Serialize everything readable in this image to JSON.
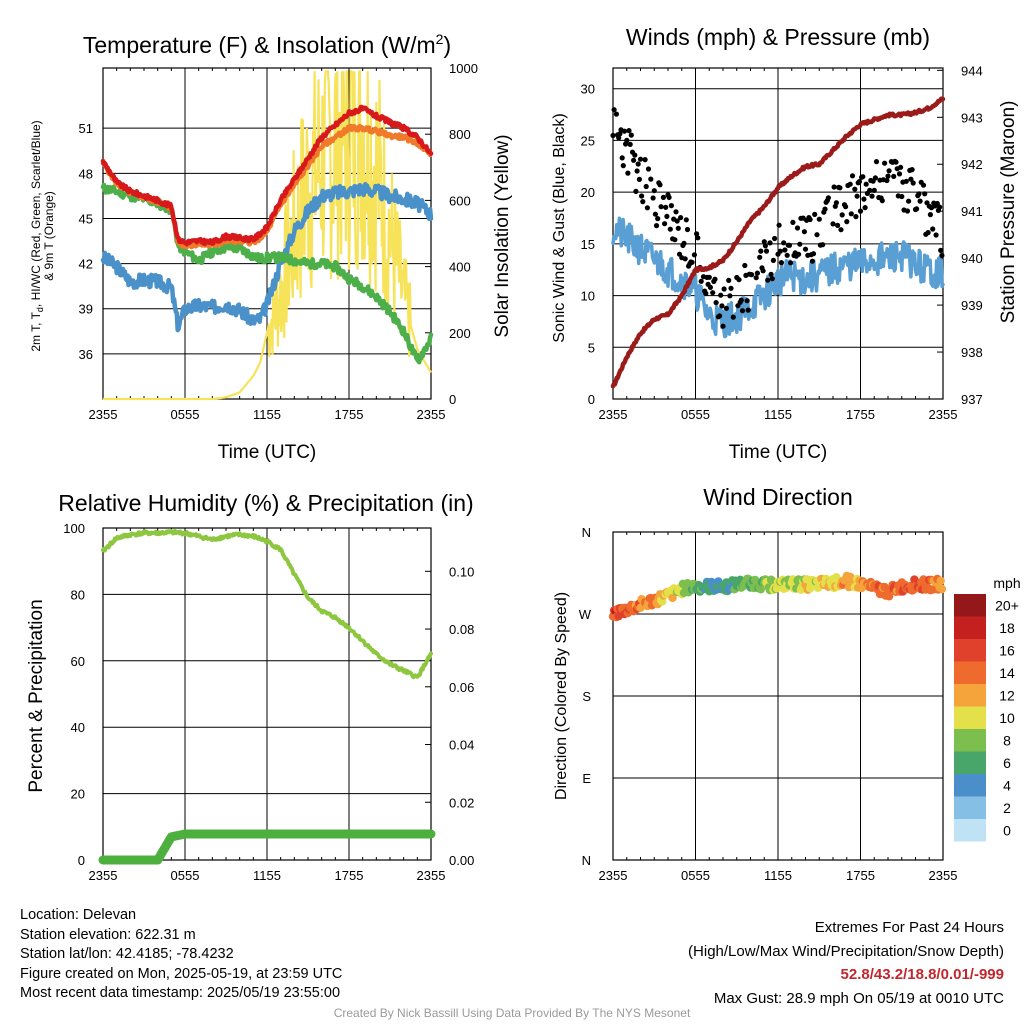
{
  "colors": {
    "temp_red": "#d7191c",
    "temp_orange": "#f07a2a",
    "dewpoint_blue": "#4a90c9",
    "windchill_green": "#4daf4a",
    "insolation_yellow": "#f7e35a",
    "wind_blue": "#5a9fd4",
    "gust_black": "#000000",
    "pressure_maroon": "#9b1b1b",
    "rh_green": "#8dc63f",
    "precip_green": "#4caf3e",
    "extremes_red": "#c1272d"
  },
  "chart_data": [
    {
      "id": "temp",
      "type": "line",
      "title": "Temperature (F) & Insolation (W/m²)",
      "xlabel": "Time (UTC)",
      "ylabel_left_lines": [
        "2m T, Td, HI/WC (Red, Green, Scarlet/Blue)",
        "& 9m T (Orange)"
      ],
      "ylabel_right": "Solar Insolation (Yellow)",
      "x_ticks": [
        "2355",
        "0555",
        "1155",
        "1755",
        "2355"
      ],
      "ylim_left": [
        33,
        55
      ],
      "ylim_right": [
        0,
        1000
      ],
      "y_ticks_left": [
        36,
        39,
        42,
        45,
        48,
        51
      ],
      "y_ticks_right": [
        0,
        200,
        400,
        600,
        800,
        1000
      ],
      "x_hours": [
        0,
        1,
        2,
        3,
        4,
        5,
        5.5,
        6,
        7,
        8,
        9,
        10,
        11,
        11.5,
        12,
        13,
        14,
        15,
        16,
        17,
        18,
        19,
        20,
        21,
        22,
        23,
        24
      ],
      "series": [
        {
          "key": "t2m",
          "values": [
            48.8,
            47.4,
            46.8,
            46.5,
            46.2,
            45.8,
            43.6,
            43.4,
            43.5,
            43.4,
            43.8,
            43.7,
            43.6,
            44.0,
            44.4,
            46.2,
            47.6,
            49.0,
            50.4,
            51.2,
            52.0,
            52.3,
            51.8,
            51.4,
            51.0,
            50.4,
            49.3
          ]
        },
        {
          "key": "t9m",
          "values": [
            48.7,
            47.3,
            46.7,
            46.4,
            46.1,
            45.7,
            43.4,
            43.2,
            43.3,
            43.2,
            43.5,
            43.5,
            43.4,
            43.7,
            44.1,
            45.9,
            47.2,
            48.5,
            49.8,
            50.4,
            51.0,
            51.0,
            50.8,
            50.5,
            50.4,
            50.0,
            49.3
          ]
        },
        {
          "key": "wc",
          "values": [
            47.0,
            46.8,
            46.5,
            46.3,
            46.0,
            45.6,
            43.2,
            42.8,
            42.2,
            42.8,
            43.1,
            43.0,
            42.5,
            42.3,
            42.4,
            42.4,
            42.2,
            42.0,
            42.0,
            41.8,
            41.0,
            40.5,
            39.8,
            38.8,
            37.5,
            35.5,
            37.0
          ]
        },
        {
          "key": "td",
          "values": [
            42.4,
            41.8,
            40.8,
            40.9,
            40.8,
            40.4,
            37.8,
            39.0,
            39.2,
            39.1,
            39.3,
            38.9,
            38.2,
            38.3,
            39.3,
            42.0,
            44.2,
            45.5,
            46.5,
            46.7,
            46.8,
            47.0,
            46.8,
            46.5,
            46.3,
            46.0,
            45.3
          ]
        },
        {
          "key": "solar",
          "values": [
            0,
            0,
            0,
            0,
            0,
            0,
            0,
            0,
            0,
            0,
            5,
            20,
            70,
            110,
            200,
            320,
            500,
            650,
            720,
            780,
            820,
            830,
            700,
            500,
            300,
            150,
            80
          ]
        }
      ]
    },
    {
      "id": "wind",
      "type": "line",
      "title": "Winds (mph) & Pressure (mb)",
      "xlabel": "Time (UTC)",
      "ylabel_left": "Sonic Wind & Gust (Blue, Black)",
      "ylabel_right": "Station Pressure (Maroon)",
      "x_ticks": [
        "2355",
        "0555",
        "1155",
        "1755",
        "2355"
      ],
      "ylim_left": [
        0,
        32
      ],
      "ylim_right": [
        937,
        944.05
      ],
      "y_ticks_left": [
        0,
        5,
        10,
        15,
        20,
        25,
        30
      ],
      "y_ticks_right": [
        937,
        938,
        939,
        940,
        941,
        942,
        943,
        944
      ],
      "x_hours": [
        0,
        1,
        2,
        3,
        4,
        5,
        6,
        7,
        8,
        9,
        10,
        11,
        12,
        13,
        14,
        15,
        16,
        17,
        18,
        19,
        20,
        21,
        22,
        23,
        24
      ],
      "series": [
        {
          "key": "wind",
          "values": [
            16.5,
            15.5,
            14.5,
            13.5,
            12.5,
            11.5,
            10.5,
            8.0,
            7.5,
            8.0,
            9.0,
            10.0,
            11.5,
            12.0,
            11.5,
            12.0,
            12.5,
            13.0,
            13.0,
            13.5,
            13.5,
            14.0,
            13.0,
            12.5,
            12.0
          ]
        },
        {
          "key": "gust",
          "values": [
            26.5,
            24.0,
            21.5,
            19.5,
            17.5,
            16.0,
            14.5,
            10.5,
            9.5,
            10.0,
            11.0,
            13.0,
            14.5,
            15.5,
            15.0,
            16.5,
            18.0,
            19.0,
            20.0,
            20.5,
            20.5,
            21.0,
            19.5,
            17.5,
            16.0
          ]
        },
        {
          "key": "pressure",
          "values": [
            937.25,
            937.9,
            938.4,
            938.7,
            938.8,
            939.2,
            939.75,
            939.8,
            939.95,
            940.35,
            940.8,
            941.1,
            941.5,
            941.75,
            941.95,
            942.0,
            942.3,
            942.6,
            942.85,
            942.95,
            943.05,
            943.05,
            943.1,
            943.2,
            943.4
          ]
        }
      ]
    },
    {
      "id": "rh",
      "type": "line",
      "title": "Relative Humidity (%) & Precipitation (in)",
      "ylabel_left": "Percent & Precipitation",
      "x_ticks": [
        "2355",
        "0555",
        "1155",
        "1755",
        "2355"
      ],
      "ylim_left": [
        0,
        100
      ],
      "ylim_right": [
        0,
        0.115
      ],
      "y_ticks_left": [
        0,
        20,
        40,
        60,
        80,
        100
      ],
      "y_ticks_right": [
        "0.00",
        "0.02",
        "0.04",
        "0.06",
        "0.08",
        "0.10"
      ],
      "x_hours": [
        0,
        1,
        2,
        3,
        4,
        5,
        6,
        7,
        8,
        9,
        10,
        11,
        12,
        13,
        14,
        15,
        16,
        17,
        18,
        19,
        20,
        21,
        22,
        23,
        24
      ],
      "series": [
        {
          "key": "rh",
          "values": [
            93,
            97,
            98,
            98.5,
            98.5,
            98.7,
            98.5,
            97.5,
            96.5,
            97.5,
            98.0,
            97.5,
            96.0,
            93.5,
            86,
            79,
            75,
            73,
            70,
            66,
            62,
            59,
            57,
            55,
            62
          ]
        },
        {
          "key": "precip",
          "values": [
            0,
            0,
            0,
            0,
            0,
            0.008,
            0.009,
            0.009,
            0.009,
            0.009,
            0.009,
            0.009,
            0.009,
            0.009,
            0.009,
            0.009,
            0.009,
            0.009,
            0.009,
            0.009,
            0.009,
            0.009,
            0.009,
            0.009,
            0.009
          ]
        }
      ]
    },
    {
      "id": "dir",
      "type": "scatter",
      "title": "Wind Direction",
      "ylabel_left": "Direction (Colored By Speed)",
      "x_ticks": [
        "2355",
        "0555",
        "1155",
        "1755",
        "2355"
      ],
      "y_ticks": [
        "N",
        "E",
        "S",
        "W",
        "N"
      ],
      "ylim_deg": [
        0,
        360
      ],
      "x_hours": [
        0,
        1,
        2,
        3,
        4,
        5,
        6,
        7,
        8,
        9,
        10,
        11,
        12,
        13,
        14,
        15,
        16,
        17,
        18,
        19,
        20,
        21,
        22,
        23,
        24
      ],
      "series": [
        {
          "key": "direction",
          "values": [
            270,
            275,
            280,
            285,
            290,
            297,
            300,
            300,
            300,
            302,
            305,
            302,
            302,
            303,
            302,
            303,
            304,
            306,
            303,
            298,
            295,
            300,
            302,
            302,
            303
          ]
        },
        {
          "key": "speed",
          "values": [
            17,
            16,
            15,
            13,
            12,
            10,
            8,
            6,
            6,
            7,
            8,
            9,
            10,
            10,
            11,
            11,
            12,
            13,
            13,
            15,
            15,
            15,
            16,
            15,
            14
          ]
        }
      ],
      "colorbar": {
        "title": "mph",
        "labels": [
          "0",
          "2",
          "4",
          "6",
          "8",
          "10",
          "12",
          "14",
          "16",
          "18",
          "20+"
        ],
        "colors": [
          "#bfe3f5",
          "#86bfe6",
          "#4a8fc9",
          "#48a66a",
          "#7cbf4f",
          "#e3e04a",
          "#f5a43c",
          "#ee6b2d",
          "#e0412c",
          "#c4201f",
          "#94181a"
        ]
      }
    }
  ],
  "footer": {
    "location": "Location: Delevan",
    "elevation": "Station elevation: 622.31 m",
    "latlon": "Station lat/lon: 42.4185; -78.4232",
    "created": "Figure created on Mon, 2025-05-19, at 23:59 UTC",
    "recent": "Most recent data timestamp: 2025/05/19 23:55:00",
    "extremes_title": "Extremes For Past 24 Hours",
    "extremes_legend": "(High/Low/Max Wind/Precipitation/Snow Depth)",
    "extremes_values": "52.8/43.2/18.8/0.01/-999",
    "max_gust": "Max Gust: 28.9 mph On 05/19 at 0010 UTC",
    "credit": "Created By Nick Bassill Using Data Provided By The NYS Mesonet"
  }
}
